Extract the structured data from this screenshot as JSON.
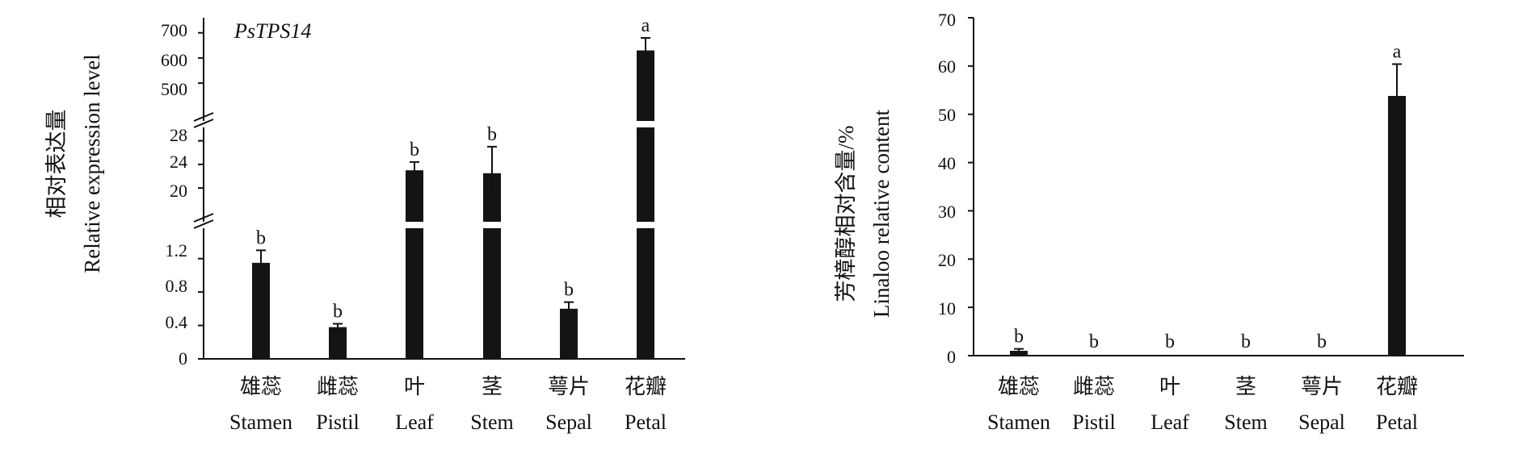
{
  "chart_data": [
    {
      "type": "bar",
      "title": "PsTPS14",
      "ylabel_cn": "相对表达量",
      "ylabel_en": "Relative expression level",
      "categories": [
        {
          "cn": "雄蕊",
          "en": "Stamen"
        },
        {
          "cn": "雌蕊",
          "en": "Pistil"
        },
        {
          "cn": "叶",
          "en": "Leaf"
        },
        {
          "cn": "茎",
          "en": "Stem"
        },
        {
          "cn": "萼片",
          "en": "Sepal"
        },
        {
          "cn": "花瓣",
          "en": "Petal"
        }
      ],
      "values": [
        1.15,
        0.38,
        23.0,
        22.5,
        0.6,
        630
      ],
      "errors": [
        0.15,
        0.04,
        1.4,
        4.5,
        0.08,
        50
      ],
      "significance": [
        "b",
        "b",
        "b",
        "b",
        "b",
        "a"
      ],
      "y_axis_broken": true,
      "segments": [
        {
          "range": [
            0,
            1.4
          ],
          "ticks": [
            "0",
            "0.4",
            "0.8",
            "1.2"
          ]
        },
        {
          "range": [
            17,
            30
          ],
          "ticks": [
            "20",
            "24",
            "28"
          ]
        },
        {
          "range": [
            420,
            760
          ],
          "ticks": [
            "500",
            "600",
            "700"
          ]
        }
      ],
      "bar_color": "#141414"
    },
    {
      "type": "bar",
      "ylabel_cn": "芳樟醇相对含量/%",
      "ylabel_en": "Linaloo relative content",
      "categories": [
        {
          "cn": "雄蕊",
          "en": "Stamen"
        },
        {
          "cn": "雌蕊",
          "en": "Pistil"
        },
        {
          "cn": "叶",
          "en": "Leaf"
        },
        {
          "cn": "茎",
          "en": "Stem"
        },
        {
          "cn": "萼片",
          "en": "Sepal"
        },
        {
          "cn": "花瓣",
          "en": "Petal"
        }
      ],
      "values": [
        1.0,
        0,
        0,
        0,
        0,
        53.8
      ],
      "errors": [
        0.4,
        0,
        0,
        0,
        0,
        6.6
      ],
      "significance": [
        "b",
        "b",
        "b",
        "b",
        "b",
        "a"
      ],
      "ylim": [
        0,
        70
      ],
      "yticks": [
        "0",
        "10",
        "20",
        "30",
        "40",
        "50",
        "60",
        "70"
      ],
      "bar_color": "#141414"
    }
  ]
}
